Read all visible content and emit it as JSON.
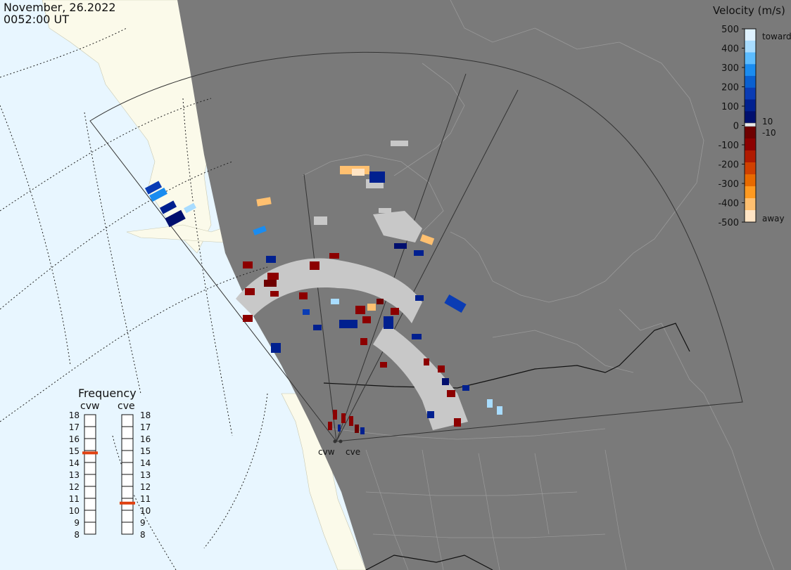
{
  "header": {
    "date": "November, 26.2022",
    "time": "0052:00 UT"
  },
  "velocity_scale": {
    "title": "Velocity (m/s)",
    "ticks": [
      "500",
      "400",
      "300",
      "200",
      "100",
      "0",
      "-100",
      "-200",
      "-300",
      "-400",
      "-500"
    ],
    "toward_label": "toward",
    "away_label": "away",
    "pos_threshold": "10",
    "neg_threshold": "-10",
    "colors_toward": [
      "#dff2ff",
      "#a8dcff",
      "#5cbcff",
      "#1a8cf0",
      "#0a60d0",
      "#0a3cb4",
      "#00208f",
      "#000f6e"
    ],
    "colors_away": [
      "#6e0000",
      "#8c0000",
      "#b01a00",
      "#d04000",
      "#e86a00",
      "#ff9a20",
      "#ffc070",
      "#ffe4c4"
    ]
  },
  "frequency_panel": {
    "title": "Frequency",
    "radars": [
      {
        "label": "cvw",
        "frequency": 14.8
      },
      {
        "label": "cve",
        "frequency": 10.6
      }
    ],
    "levels": [
      "18",
      "17",
      "16",
      "15",
      "14",
      "13",
      "12",
      "11",
      "10",
      "9",
      "8"
    ],
    "marker_color": "#e04010"
  },
  "map": {
    "ocean_color": "#e8f6ff",
    "land_day_color": "#fbfaea",
    "night_color": "#7a7a7a",
    "ground_scatter_color": "#c8c8c8",
    "radar_site_labels": [
      "cvw",
      "cve"
    ]
  }
}
